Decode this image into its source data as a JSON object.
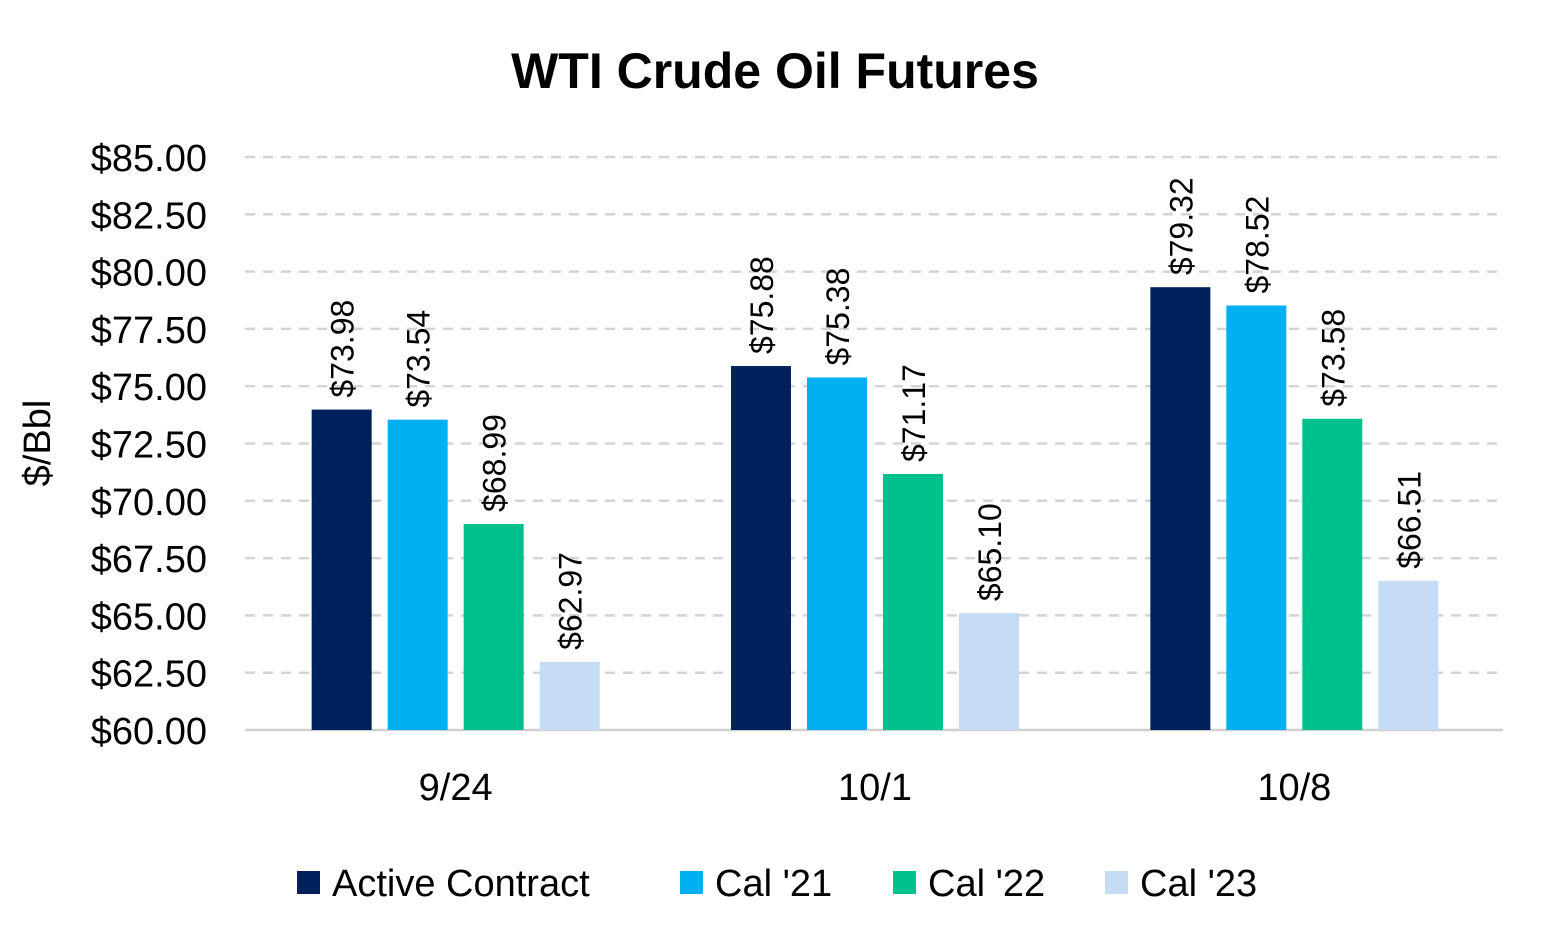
{
  "chart_data": {
    "type": "bar",
    "title": "WTI Crude Oil Futures",
    "xlabel": "",
    "ylabel": "$/Bbl",
    "ylim": [
      60,
      85
    ],
    "ytick_step": 2.5,
    "yticks": [
      "$60.00",
      "$62.50",
      "$65.00",
      "$67.50",
      "$70.00",
      "$72.50",
      "$75.00",
      "$77.50",
      "$80.00",
      "$82.50",
      "$85.00"
    ],
    "grid": true,
    "legend_position": "bottom",
    "categories": [
      "9/24",
      "10/1",
      "10/8"
    ],
    "series": [
      {
        "name": "Active Contract",
        "color": "#00205B",
        "values": [
          73.98,
          75.88,
          79.32
        ],
        "labels": [
          "$73.98",
          "$75.88",
          "$79.32"
        ]
      },
      {
        "name": "Cal '21",
        "color": "#00B0F0",
        "values": [
          73.54,
          75.38,
          78.52
        ],
        "labels": [
          "$73.54",
          "$75.38",
          "$78.52"
        ]
      },
      {
        "name": "Cal '22",
        "color": "#00C08B",
        "values": [
          68.99,
          71.17,
          73.58
        ],
        "labels": [
          "$68.99",
          "$71.17",
          "$73.58"
        ]
      },
      {
        "name": "Cal '23",
        "color": "#C5DCF5",
        "values": [
          62.97,
          65.1,
          66.51
        ],
        "labels": [
          "$62.97",
          "$65.10",
          "$66.51"
        ]
      }
    ]
  }
}
